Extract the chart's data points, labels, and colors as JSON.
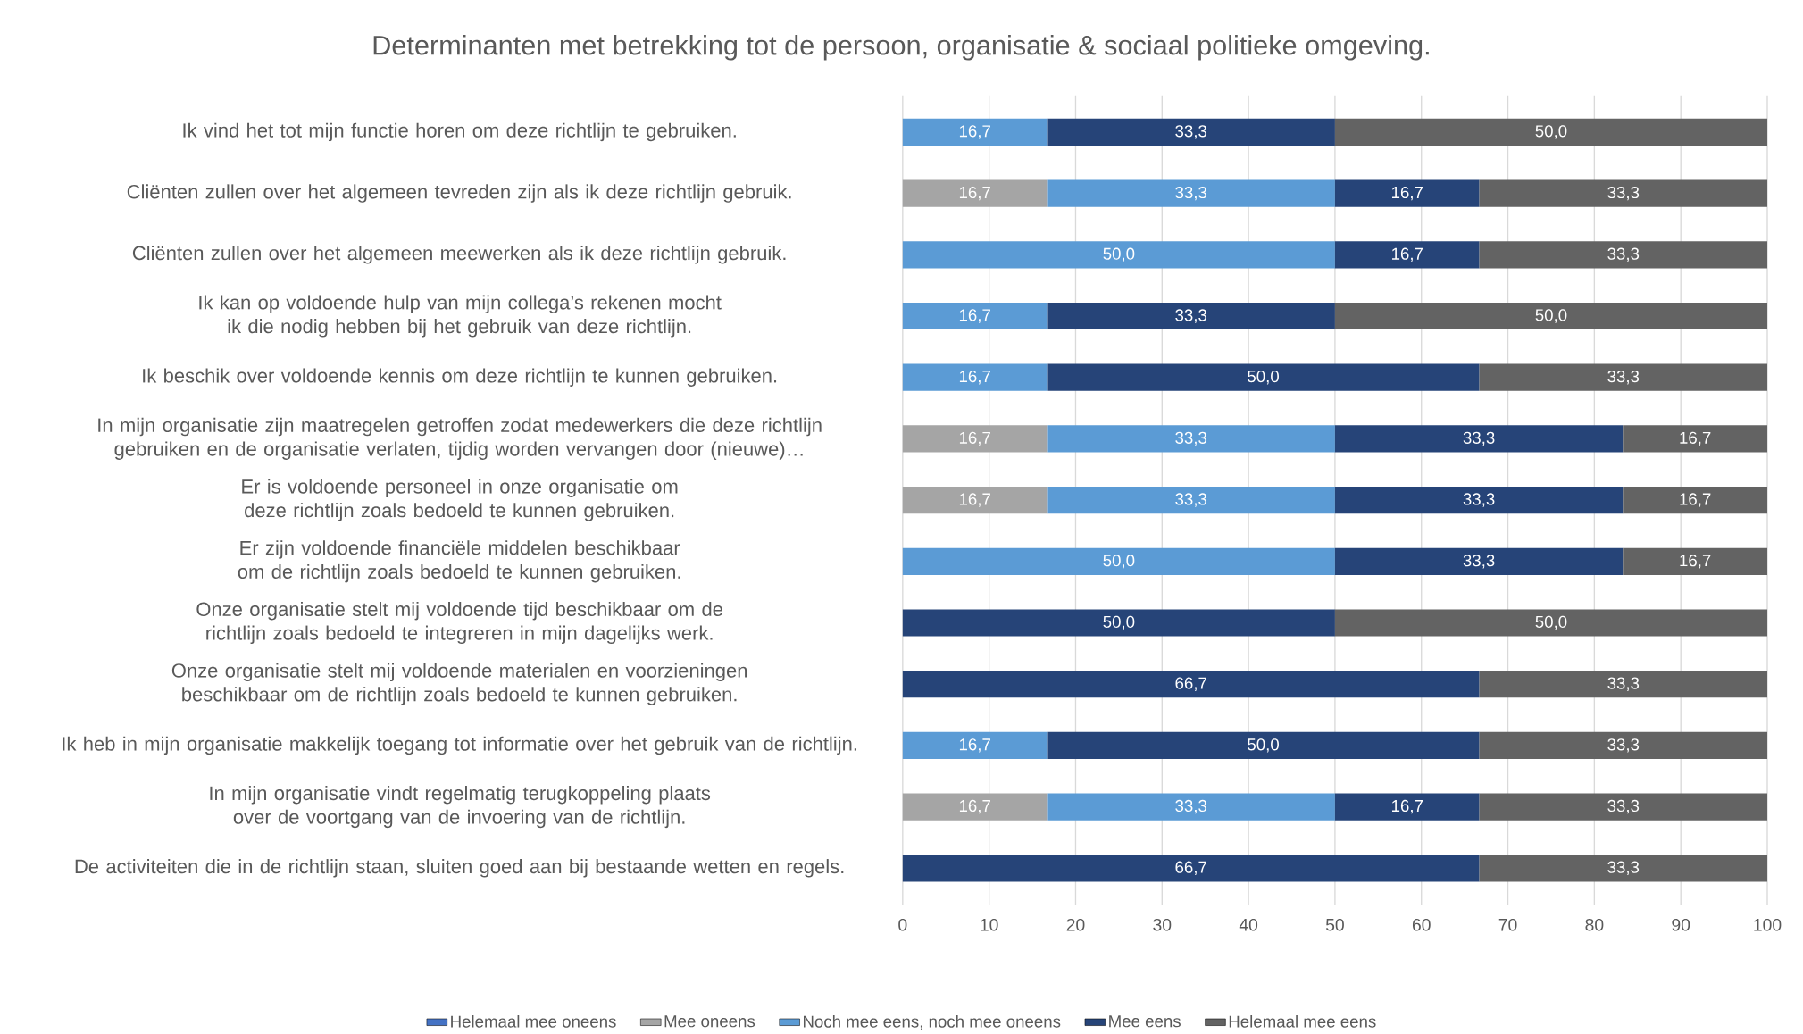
{
  "chart_data": {
    "type": "bar",
    "orientation": "horizontal",
    "stacked": true,
    "title": "Determinanten met betrekking tot de persoon, organisatie & sociaal politieke omgeving.",
    "categories": [
      "Ik vind het tot mijn functie horen om deze richtlijn te gebruiken.",
      "Cliënten zullen over het algemeen tevreden zijn als ik deze richtlijn gebruik.",
      "Cliënten zullen over het algemeen meewerken als ik deze richtlijn gebruik.",
      "Ik kan op voldoende hulp van mijn collega’s rekenen mocht ik die nodig hebben bij het gebruik van deze richtlijn.",
      "Ik beschik over voldoende kennis om deze richtlijn te kunnen gebruiken.",
      "In mijn organisatie zijn maatregelen getroffen zodat medewerkers die deze richtlijn gebruiken en de organisatie verlaten, tijdig worden vervangen door (nieuwe)…",
      "Er is voldoende personeel in onze organisatie om deze richtlijn zoals bedoeld te kunnen gebruiken.",
      "Er zijn voldoende financiële middelen beschikbaar om de richtlijn zoals bedoeld te kunnen gebruiken.",
      "Onze organisatie stelt mij voldoende tijd beschikbaar om de richtlijn zoals bedoeld te integreren in mijn dagelijks werk.",
      "Onze organisatie stelt mij voldoende materialen en voorzieningen beschikbaar om de richtlijn zoals bedoeld te kunnen gebruiken.",
      "Ik heb in mijn organisatie makkelijk toegang tot informatie over het gebruik van de richtlijn.",
      "In mijn organisatie vindt regelmatig terugkoppeling plaats over de voortgang van de invoering van de richtlijn.",
      "De activiteiten die in de richtlijn staan, sluiten goed aan bij bestaande wetten en regels."
    ],
    "series": [
      {
        "name": "Helemaal mee oneens",
        "color": "#4472c4",
        "values": [
          null,
          null,
          null,
          null,
          null,
          null,
          null,
          null,
          null,
          null,
          null,
          null,
          null
        ],
        "value_labels": [
          null,
          null,
          null,
          null,
          null,
          null,
          null,
          null,
          null,
          null,
          null,
          null,
          null
        ]
      },
      {
        "name": "Mee oneens",
        "color": "#a5a5a5",
        "values": [
          null,
          16.7,
          null,
          null,
          null,
          16.7,
          16.7,
          null,
          null,
          null,
          null,
          16.7,
          null
        ],
        "value_labels": [
          null,
          "16,7",
          null,
          null,
          null,
          "16,7",
          "16,7",
          null,
          null,
          null,
          null,
          "16,7",
          null
        ]
      },
      {
        "name": "Noch mee eens, noch mee oneens",
        "color": "#5b9bd5",
        "values": [
          16.7,
          33.3,
          50.0,
          16.7,
          16.7,
          33.3,
          33.3,
          50.0,
          null,
          null,
          16.7,
          33.3,
          null
        ],
        "value_labels": [
          "16,7",
          "33,3",
          "50,0",
          "16,7",
          "16,7",
          "33,3",
          "33,3",
          "50,0",
          null,
          null,
          "16,7",
          "33,3",
          null
        ]
      },
      {
        "name": "Mee eens",
        "color": "#264478",
        "values": [
          33.3,
          16.7,
          16.7,
          33.3,
          50.0,
          33.3,
          33.3,
          33.3,
          50.0,
          66.7,
          50.0,
          16.7,
          66.7
        ],
        "value_labels": [
          "33,3",
          "16,7",
          "16,7",
          "33,3",
          "50,0",
          "33,3",
          "33,3",
          "33,3",
          "50,0",
          "66,7",
          "50,0",
          "16,7",
          "66,7"
        ]
      },
      {
        "name": "Helemaal mee eens",
        "color": "#636363",
        "values": [
          50.0,
          33.3,
          33.3,
          50.0,
          33.3,
          16.7,
          16.7,
          16.7,
          50.0,
          33.3,
          33.3,
          33.3,
          33.3
        ],
        "value_labels": [
          "50,0",
          "33,3",
          "33,3",
          "50,0",
          "33,3",
          "16,7",
          "16,7",
          "16,7",
          "50,0",
          "33,3",
          "33,3",
          "33,3",
          "33,3"
        ]
      }
    ],
    "xlim": [
      0,
      100
    ],
    "xticks": [
      0,
      10,
      20,
      30,
      40,
      50,
      60,
      70,
      80,
      90,
      100
    ],
    "grid": "x",
    "legend": "bottom"
  }
}
